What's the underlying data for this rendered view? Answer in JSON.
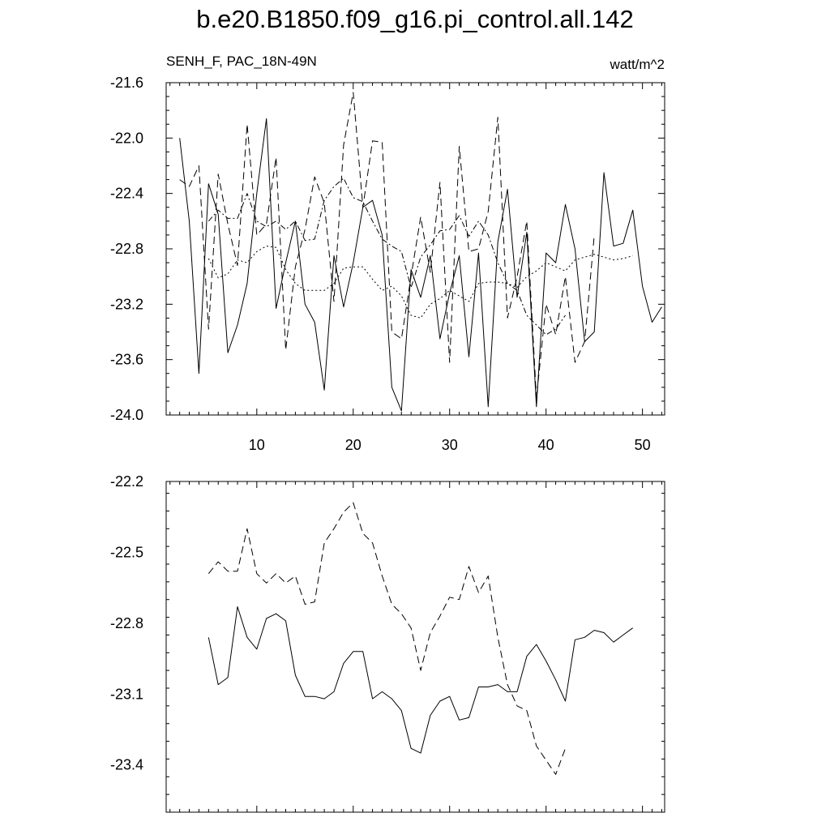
{
  "title": "b.e20.B1850.f09_g16.pi_control.all.142",
  "subtitle_left": "SENH_F, PAC_18N-49N",
  "subtitle_right": "watt/m^2",
  "colors": {
    "line": "#000000",
    "frame": "#000000",
    "background": "#ffffff"
  },
  "chart_data": [
    {
      "type": "line",
      "title": "",
      "xlabel": "",
      "ylabel": "",
      "xlim": [
        0.6,
        52.3
      ],
      "ylim": [
        -24.0,
        -21.6
      ],
      "xticks": [
        10,
        20,
        30,
        40,
        50
      ],
      "yticks": [
        -24.0,
        -23.6,
        -23.2,
        -22.8,
        -22.4,
        -22.0,
        -21.6
      ],
      "xtick_labels": [
        "10",
        "20",
        "30",
        "40",
        "50"
      ],
      "ytick_labels": [
        "-24.0",
        "-23.6",
        "-23.2",
        "-22.8",
        "-22.4",
        "-22.0",
        "-21.6"
      ],
      "grid": false,
      "series": [
        {
          "style": "solid",
          "x": [
            2,
            3,
            4,
            5,
            6,
            7,
            8,
            9,
            10,
            11,
            12,
            13,
            14,
            15,
            16,
            17,
            18,
            19,
            20,
            21,
            22,
            23,
            24,
            25,
            26,
            27,
            28,
            29,
            30,
            31,
            32,
            33,
            34,
            35,
            36,
            37,
            38,
            39,
            40,
            41,
            42,
            43,
            44,
            45,
            46,
            47,
            48,
            49,
            50,
            51
          ],
          "y": [
            -22.0,
            -22.6,
            -23.7,
            -22.33,
            -22.55,
            -23.55,
            -23.35,
            -23.05,
            -22.4,
            -21.86,
            -23.23,
            -22.9,
            -22.6,
            -23.2,
            -23.33,
            -23.82,
            -22.85,
            -23.22,
            -22.9,
            -22.5,
            -22.45,
            -22.7,
            -23.8,
            -23.97,
            -22.95,
            -23.15,
            -22.85,
            -23.45,
            -23.12,
            -22.85,
            -23.58,
            -22.83,
            -23.94,
            -22.75,
            -22.37,
            -23.15,
            -22.68,
            -23.94,
            -22.83,
            -22.9,
            -22.48,
            -22.8,
            -23.47,
            -23.4,
            -22.25,
            -22.78,
            -22.76,
            -22.52,
            -23.07,
            -23.33
          ],
          "x_tail": 52,
          "y_tail": -23.22
        },
        {
          "style": "dashed",
          "x": [
            2,
            3,
            4,
            5,
            6,
            7,
            8,
            9,
            10,
            11,
            12,
            13,
            14,
            15,
            16,
            17,
            18,
            19,
            20,
            21,
            22,
            23,
            24,
            25,
            26,
            27,
            28,
            29,
            30,
            31,
            32,
            33,
            34,
            35,
            36,
            37,
            38,
            39,
            40,
            41,
            42,
            43,
            44
          ],
          "y": [
            -22.3,
            -22.35,
            -22.2,
            -23.38,
            -22.26,
            -22.62,
            -22.92,
            -21.9,
            -22.7,
            -22.62,
            -22.14,
            -23.53,
            -22.93,
            -22.66,
            -22.28,
            -22.47,
            -23.18,
            -22.05,
            -21.67,
            -22.5,
            -22.02,
            -22.03,
            -23.4,
            -23.45,
            -23.0,
            -22.57,
            -22.97,
            -22.32,
            -23.62,
            -22.06,
            -22.82,
            -22.8,
            -22.53,
            -21.85,
            -23.3,
            -23.0,
            -22.6,
            -23.88,
            -23.2,
            -23.42,
            -23.0,
            -23.62,
            -23.47
          ],
          "x_tail": 45,
          "y_tail": -22.7
        },
        {
          "style": "dash-dot",
          "x": [
            5,
            6,
            7,
            8,
            9,
            10,
            11,
            12,
            13,
            14,
            15,
            16,
            17,
            18,
            19,
            20,
            21,
            22,
            23,
            24,
            25,
            26,
            27,
            28,
            29,
            30,
            31,
            32,
            33,
            34,
            35,
            36,
            37,
            38,
            39,
            40,
            41,
            42
          ],
          "y": [
            -22.6,
            -22.52,
            -22.58,
            -22.58,
            -22.4,
            -22.6,
            -22.64,
            -22.6,
            -22.66,
            -22.6,
            -22.74,
            -22.73,
            -22.45,
            -22.35,
            -22.29,
            -22.43,
            -22.46,
            -22.6,
            -22.73,
            -22.78,
            -22.82,
            -23.08,
            -22.86,
            -22.77,
            -22.67,
            -22.66,
            -22.56,
            -22.71,
            -22.6,
            -22.7,
            -22.9,
            -23.05,
            -23.1,
            -23.28,
            -23.35,
            -23.42,
            -23.38,
            -23.28
          ]
        },
        {
          "style": "dotted",
          "x": [
            5,
            6,
            7,
            8,
            9,
            10,
            11,
            12,
            13,
            14,
            15,
            16,
            17,
            18,
            19,
            20,
            21,
            22,
            23,
            24,
            25,
            26,
            27,
            28,
            29,
            30,
            31,
            32,
            33,
            34,
            35,
            36,
            37,
            38,
            39,
            40,
            41,
            42,
            43,
            44,
            45,
            46,
            47,
            48,
            49
          ],
          "y": [
            -22.87,
            -23.01,
            -22.98,
            -22.88,
            -22.9,
            -22.82,
            -22.78,
            -22.79,
            -22.95,
            -23.05,
            -23.1,
            -23.1,
            -23.1,
            -23.05,
            -22.94,
            -22.93,
            -22.93,
            -23.02,
            -23.1,
            -23.07,
            -23.14,
            -23.28,
            -23.3,
            -23.2,
            -23.16,
            -23.1,
            -23.14,
            -23.18,
            -23.05,
            -23.04,
            -23.04,
            -23.05,
            -23.08,
            -23.0,
            -22.96,
            -22.9,
            -22.93,
            -22.96,
            -22.88,
            -22.86,
            -22.84,
            -22.86,
            -22.88,
            -22.87,
            -22.85
          ]
        }
      ]
    },
    {
      "type": "line",
      "title": "",
      "xlabel": "",
      "ylabel": "",
      "xlim": [
        0.6,
        52.3
      ],
      "ylim": [
        -23.6,
        -22.2
      ],
      "xticks": [
        10,
        20,
        30,
        40,
        50
      ],
      "yticks": [
        -23.4,
        -23.1,
        -22.8,
        -22.5,
        -22.2
      ],
      "ytick_labels": [
        "-23.4",
        "-23.1",
        "-22.8",
        "-22.5",
        "-22.2"
      ],
      "grid": false,
      "series": [
        {
          "style": "solid",
          "x": [
            5,
            6,
            7,
            8,
            9,
            10,
            11,
            12,
            13,
            14,
            15,
            16,
            17,
            18,
            19,
            20,
            21,
            22,
            23,
            24,
            25,
            26,
            27,
            28,
            29,
            30,
            31,
            32,
            33,
            34,
            35,
            36,
            37,
            38,
            39,
            40,
            41,
            42,
            43,
            44,
            45,
            46,
            47,
            48,
            49
          ],
          "y": [
            -22.86,
            -23.06,
            -23.03,
            -22.73,
            -22.86,
            -22.91,
            -22.78,
            -22.76,
            -22.79,
            -23.02,
            -23.11,
            -23.11,
            -23.12,
            -23.09,
            -22.97,
            -22.92,
            -22.92,
            -23.12,
            -23.09,
            -23.12,
            -23.17,
            -23.33,
            -23.35,
            -23.19,
            -23.13,
            -23.11,
            -23.21,
            -23.2,
            -23.07,
            -23.07,
            -23.06,
            -23.09,
            -23.09,
            -22.94,
            -22.89,
            -22.96,
            -23.04,
            -23.13,
            -22.87,
            -22.86,
            -22.83,
            -22.84,
            -22.88,
            -22.85,
            -22.82
          ]
        },
        {
          "style": "dashed",
          "x": [
            5,
            6,
            7,
            8,
            9,
            10,
            11,
            12,
            13,
            14,
            15,
            16,
            17,
            18,
            19,
            20,
            21,
            22,
            23,
            24,
            25,
            26,
            27,
            28,
            29,
            30,
            31,
            32,
            33,
            34,
            35,
            36,
            37,
            38,
            39,
            40,
            41,
            42
          ],
          "y": [
            -22.59,
            -22.54,
            -22.58,
            -22.58,
            -22.4,
            -22.59,
            -22.63,
            -22.59,
            -22.63,
            -22.6,
            -22.72,
            -22.71,
            -22.46,
            -22.4,
            -22.33,
            -22.29,
            -22.42,
            -22.46,
            -22.6,
            -22.72,
            -22.76,
            -22.82,
            -23.0,
            -22.84,
            -22.77,
            -22.69,
            -22.7,
            -22.56,
            -22.67,
            -22.6,
            -22.86,
            -23.06,
            -23.15,
            -23.17,
            -23.32,
            -23.38,
            -23.44,
            -23.33
          ]
        }
      ]
    }
  ]
}
